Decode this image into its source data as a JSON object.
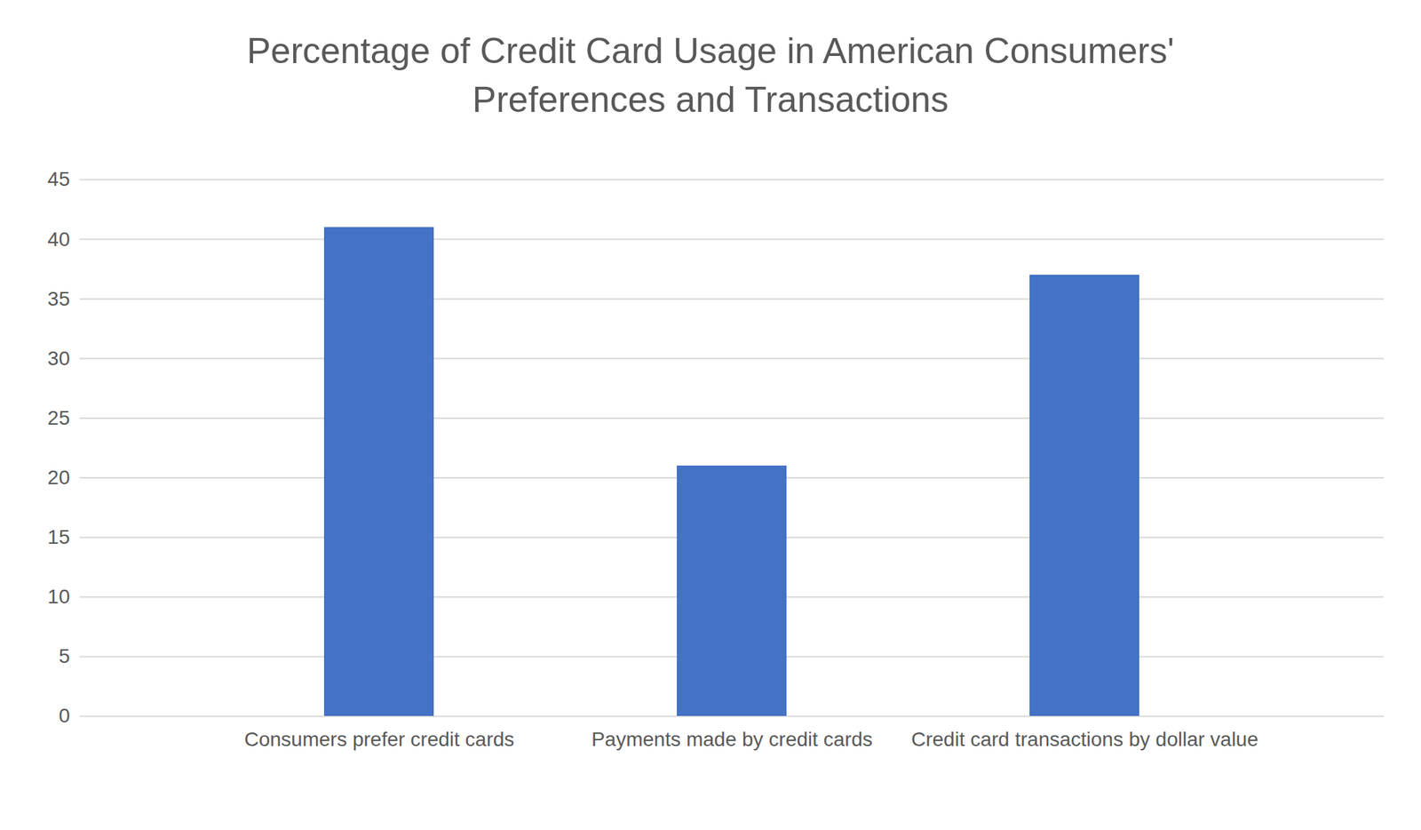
{
  "chart_data": {
    "type": "bar",
    "title": "Percentage of Credit Card Usage in American Consumers' Preferences and Transactions",
    "categories": [
      "Consumers prefer credit cards",
      "Payments made by credit cards",
      "Credit card transactions by dollar value"
    ],
    "values": [
      41,
      21,
      37
    ],
    "color": "#4472c4",
    "ylim": [
      0,
      45
    ],
    "yticks": [
      0,
      5,
      10,
      15,
      20,
      25,
      30,
      35,
      40,
      45
    ],
    "grid": true
  }
}
